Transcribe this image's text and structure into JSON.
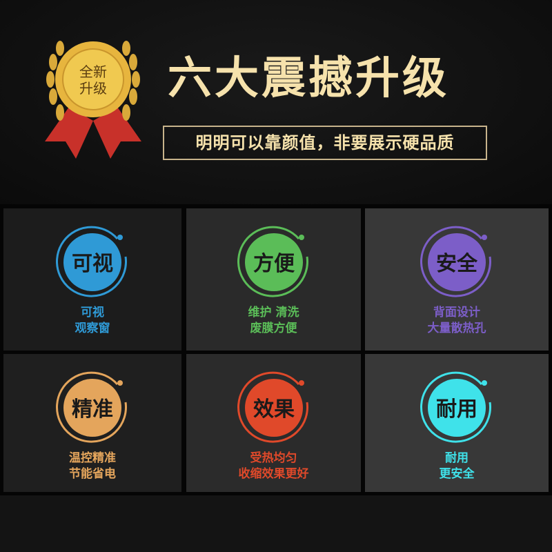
{
  "badge": {
    "text": "全新升级",
    "line1": "全新",
    "line2": "升级"
  },
  "header": {
    "title": "六大震撼升级",
    "subtitle": "明明可以靠颜值，非要展示硬品质"
  },
  "features": [
    {
      "icon_text": "可视",
      "line1": "可视",
      "line2": "观察窗",
      "color": "#2f9ad6"
    },
    {
      "icon_text": "方便",
      "line1": "维护 清洗",
      "line2": "废膜方便",
      "color": "#5bbd58"
    },
    {
      "icon_text": "安全",
      "line1": "背面设计",
      "line2": "大量散热孔",
      "color": "#7c5ec8"
    },
    {
      "icon_text": "精准",
      "line1": "温控精准",
      "line2": "节能省电",
      "color": "#e4a55c"
    },
    {
      "icon_text": "效果",
      "line1": "受热均匀",
      "line2": "收缩效果更好",
      "color": "#e0492a"
    },
    {
      "icon_text": "耐用",
      "line1": "耐用",
      "line2": "更安全",
      "color": "#3fe2ea"
    }
  ]
}
